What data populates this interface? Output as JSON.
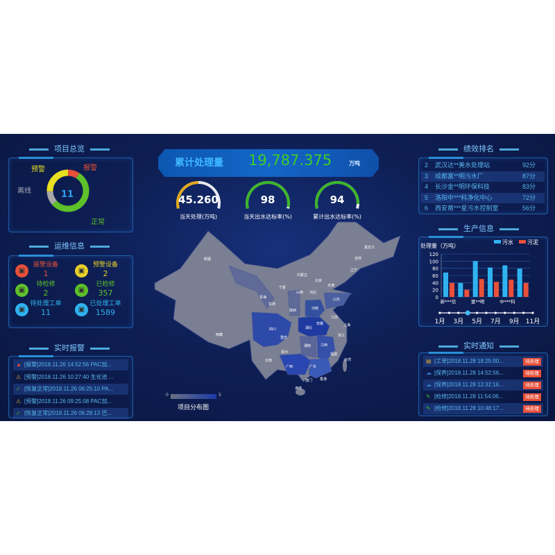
{
  "left": {
    "overview": {
      "title": "项目总览",
      "total": "11",
      "segments": [
        {
          "label": "报警",
          "value": 1,
          "color": "#e8503a"
        },
        {
          "label": "正常",
          "value": 6,
          "color": "#5ec12a"
        },
        {
          "label": "离线",
          "value": 1.2,
          "color": "#a7a7a7"
        },
        {
          "label": "预警",
          "value": 2.8,
          "color": "#e8e020"
        }
      ]
    },
    "ops": {
      "title": "运维信息",
      "items": [
        {
          "label": "报警设备",
          "value": "1",
          "color": "#e8503a",
          "icon": "alarm-light-icon"
        },
        {
          "label": "预警设备",
          "value": "2",
          "color": "#e8d02a",
          "icon": "warning-icon"
        },
        {
          "label": "待检修",
          "value": "2",
          "color": "#5ec12a",
          "icon": "wrench-icon"
        },
        {
          "label": "已检修",
          "value": "357",
          "color": "#5ec12a",
          "icon": "wrench-icon"
        },
        {
          "label": "待处理工单",
          "value": "11",
          "color": "#2fb3f0",
          "icon": "document-icon"
        },
        {
          "label": "已处理工单",
          "value": "1589",
          "color": "#2fb3f0",
          "icon": "document-icon"
        }
      ]
    },
    "alarms": {
      "title": "实时报警",
      "items": [
        {
          "text": "[报警]2018.11.26 14:52:56 PAC加...",
          "icon": "alarm-icon"
        },
        {
          "text": "[预警]2018.11.26 10:27:40 生化池 ...",
          "icon": "warning-icon"
        },
        {
          "text": "[恢复正常]2018.11.26 06:25:10 PA...",
          "icon": "check-icon"
        },
        {
          "text": "[预警]2018.11.26 09:25:08 PAC加...",
          "icon": "warning-icon"
        },
        {
          "text": "[恢复正常]2018.11.26 06:28:13 巴...",
          "icon": "check-icon"
        }
      ]
    }
  },
  "center": {
    "banner": {
      "label": "累计处理量",
      "value": "19,787.375",
      "unit": "万吨"
    },
    "gauges": [
      {
        "value": "45.260",
        "label": "当天处理(万吨)",
        "fraction": 0.5,
        "color": "#e0a81c"
      },
      {
        "value": "98",
        "label": "当天出水达标率(%)",
        "fraction": 0.98,
        "color": "#3db52a"
      },
      {
        "value": "94",
        "label": "累计出水达标率(%)",
        "fraction": 0.94,
        "color": "#3db52a"
      }
    ],
    "map": {
      "title": "项目分布图",
      "legend_min": "0",
      "legend_max": "5",
      "provinces": [
        "新疆",
        "西藏",
        "青海",
        "甘肃",
        "内蒙古",
        "宁夏",
        "陕西",
        "山西",
        "河北",
        "北京",
        "天津",
        "山东",
        "河南",
        "四川",
        "重庆",
        "湖北",
        "安徽",
        "江苏",
        "上海",
        "浙江",
        "湖南",
        "江西",
        "贵州",
        "云南",
        "广西",
        "广东",
        "福建",
        "台湾",
        "香港",
        "澳门",
        "海南",
        "黑龙江",
        "吉林",
        "辽宁"
      ]
    }
  },
  "right": {
    "ranking": {
      "title": "绩效排名",
      "items": [
        {
          "rank": "2",
          "name": "武汉达**美水处理站",
          "score": "92分"
        },
        {
          "rank": "3",
          "name": "成都富**明污水厂",
          "score": "87分"
        },
        {
          "rank": "4",
          "name": "长沙金**明环保科技",
          "score": "83分"
        },
        {
          "rank": "5",
          "name": "洛阳中***科净化中心",
          "score": "72分"
        },
        {
          "rank": "6",
          "name": "西安凿***星污水控制室",
          "score": "56分"
        }
      ]
    },
    "production": {
      "title": "生产信息"
    },
    "notices": {
      "title": "实时通知",
      "button": "待处理",
      "items": [
        {
          "text": "[工单]2018.11.28 18:25:00...",
          "icon": "clipboard-icon",
          "color": "#d9a82a"
        },
        {
          "text": "[保养]2018.11.28 14:52:56...",
          "icon": "cloud-icon",
          "color": "#3a78c8"
        },
        {
          "text": "[保养]2018.11.28 12:32:16...",
          "icon": "cloud-icon",
          "color": "#3a78c8"
        },
        {
          "text": "[检修]2018.11.28 11:54:06...",
          "icon": "wrench-icon",
          "color": "#3db52a"
        },
        {
          "text": "[检修]2018.11.28 10:48:17...",
          "icon": "wrench-icon",
          "color": "#3db52a"
        }
      ]
    }
  },
  "chart_data": {
    "type": "bar",
    "ylabel": "处理量（万吨）",
    "ylim": [
      0,
      120
    ],
    "yticks": [
      0,
      20,
      40,
      60,
      80,
      100,
      120
    ],
    "categories": [
      "新***信",
      "",
      "富**明",
      "",
      "中***科",
      ""
    ],
    "series": [
      {
        "name": "污水",
        "color": "#2fb3f0",
        "values": [
          68,
          39,
          100,
          82,
          88,
          79
        ]
      },
      {
        "name": "污泥",
        "color": "#e8503a",
        "values": [
          39,
          20,
          50,
          42,
          48,
          39
        ]
      }
    ],
    "timeline": {
      "labels": [
        "1月",
        "3月",
        "5月",
        "7月",
        "9月",
        "11月"
      ],
      "active_index": 3,
      "points": 11
    }
  }
}
